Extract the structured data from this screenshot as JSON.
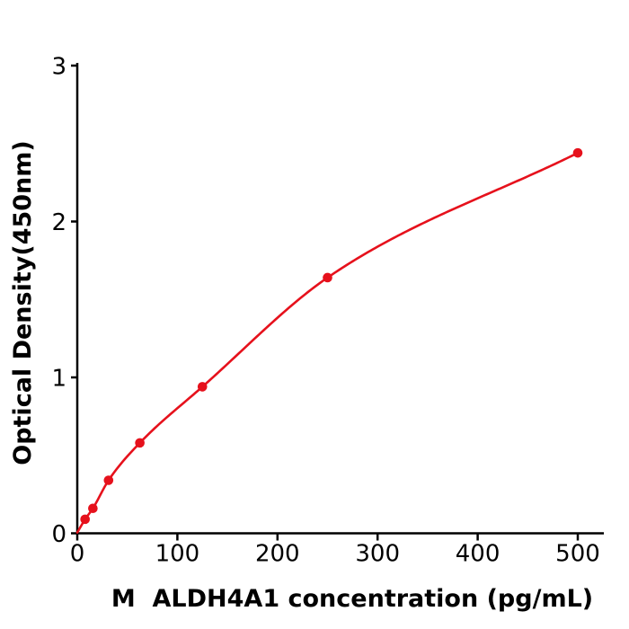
{
  "figure": {
    "background_color": "#ffffff",
    "description": "ELISA standard curve plot, red fitted curve with red circular data points on white background, black L-shaped axes"
  },
  "chart_data": {
    "type": "scatter",
    "subtype": "standard-curve-with-smooth-fit-line",
    "title": "",
    "xlabel": "M  ALDH4A1 concentration (pg/mL)",
    "ylabel": "Optical Density(450nm)",
    "x": [
      7.8,
      15.6,
      31.25,
      62.5,
      125,
      250,
      500
    ],
    "y": [
      0.09,
      0.16,
      0.34,
      0.58,
      0.94,
      1.64,
      2.44
    ],
    "curve_start": [
      0,
      0.005
    ],
    "xlim": [
      0,
      526
    ],
    "ylim": [
      0,
      3
    ],
    "xticks": [
      0,
      100,
      200,
      300,
      400,
      500
    ],
    "yticks": [
      0,
      1,
      2,
      3
    ],
    "grid": false,
    "legend": null,
    "colors": {
      "points": "#e6111c",
      "line": "#e6111c",
      "axis": "#000000",
      "tick_text": "#000000",
      "label_text": "#000000"
    }
  }
}
